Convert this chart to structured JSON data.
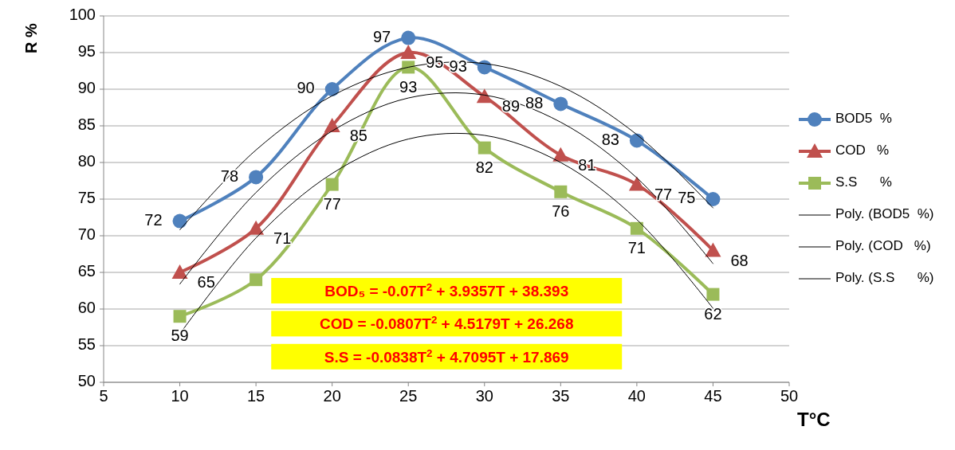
{
  "chart_data": {
    "type": "line",
    "ylabel": "R %",
    "xlabel": "T°C",
    "x": [
      10,
      15,
      20,
      25,
      30,
      35,
      40,
      45
    ],
    "xlim": [
      5,
      50
    ],
    "xticks": [
      5,
      10,
      15,
      20,
      25,
      30,
      35,
      40,
      45,
      50
    ],
    "ylim": [
      50,
      100
    ],
    "yticks": [
      50,
      55,
      60,
      65,
      70,
      75,
      80,
      85,
      90,
      95,
      100
    ],
    "grid": "y",
    "legend": "right",
    "series": [
      {
        "name": "BOD5  %",
        "color": "#4f81bd",
        "marker": "circle",
        "values": [
          72,
          78,
          90,
          97,
          93,
          88,
          83,
          75
        ],
        "value_labels": [
          "72",
          "78",
          "90",
          "97",
          "93",
          "88",
          "83",
          "75"
        ]
      },
      {
        "name": "COD   %",
        "color": "#c0504d",
        "marker": "triangle",
        "values": [
          65,
          71,
          85,
          95,
          89,
          81,
          77,
          68
        ],
        "value_labels": [
          "65",
          "71",
          "85",
          "95",
          "89",
          "81",
          "77",
          "68"
        ]
      },
      {
        "name": "S.S      %",
        "color": "#9bbb59",
        "marker": "square",
        "values": [
          59,
          64,
          77,
          93,
          82,
          76,
          71,
          62
        ],
        "value_labels": [
          "59",
          null,
          "77",
          "93",
          "82",
          "76",
          "71",
          "62"
        ]
      },
      {
        "name": "Poly. (BOD5  %)",
        "color": "#000000",
        "marker": "none",
        "x": [
          10,
          15,
          20,
          25,
          30,
          35,
          40,
          45
        ],
        "values": [
          70.8,
          81.7,
          89.1,
          93.0,
          93.5,
          90.4,
          83.8,
          73.8
        ]
      },
      {
        "name": "Poly. (COD   %)",
        "color": "#000000",
        "marker": "none",
        "x": [
          10,
          15,
          20,
          25,
          30,
          35,
          40,
          45
        ],
        "values": [
          63.4,
          75.9,
          84.3,
          88.8,
          89.2,
          85.5,
          77.9,
          66.2
        ]
      },
      {
        "name": "Poly. (S.S      %)",
        "color": "#000000",
        "marker": "none",
        "x": [
          10,
          15,
          20,
          25,
          30,
          35,
          40,
          45
        ],
        "values": [
          56.6,
          69.7,
          78.5,
          83.2,
          83.7,
          80.0,
          72.2,
          60.1
        ]
      }
    ],
    "annotations": [
      "BOD₅ = -0.07T$^{2}$ + 3.9357T + 38.393",
      "COD = -0.0807T$^{2}$ + 4.5179T + 26.268",
      "S.S = -0.0838T$^{2}$ + 4.7095T + 17.869"
    ]
  }
}
